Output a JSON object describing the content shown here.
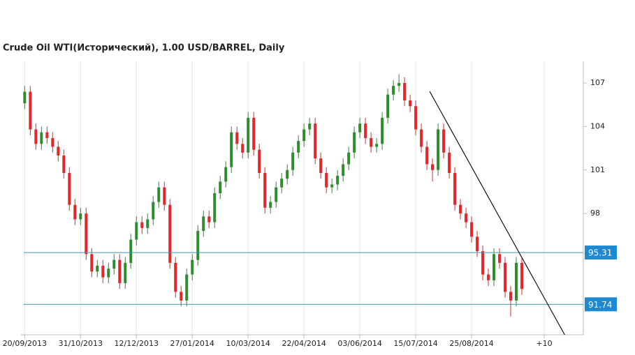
{
  "chart_data": {
    "type": "candlestick",
    "title": "Crude Oil WTI(Исторический), 1.00 USD/BARREL, Daily",
    "x": [
      0,
      3,
      6,
      9,
      12,
      15,
      18,
      21,
      24,
      27,
      30,
      33,
      36,
      39,
      42,
      45,
      48,
      51,
      54,
      57,
      60,
      63,
      66,
      69,
      72,
      75,
      78,
      81,
      84,
      87,
      90,
      93,
      96,
      99,
      102,
      105,
      108,
      111,
      114,
      117,
      120,
      123,
      126,
      129,
      132,
      135,
      138,
      141,
      144,
      147,
      150,
      153,
      156,
      159,
      162,
      165,
      168,
      171,
      174,
      177,
      180,
      183,
      186,
      189,
      192,
      195,
      198,
      201,
      204,
      207,
      210,
      213,
      216,
      219,
      222,
      225,
      228,
      231,
      234,
      237,
      240,
      243,
      246,
      249,
      252,
      255,
      258,
      261,
      264,
      267
    ],
    "open": [
      105.6,
      106.4,
      103.8,
      102.8,
      103.6,
      103.2,
      102.6,
      102.0,
      100.8,
      98.6,
      97.6,
      98.0,
      95.2,
      94.0,
      94.4,
      93.6,
      94.2,
      94.8,
      93.2,
      94.6,
      96.2,
      97.4,
      97.0,
      97.6,
      98.8,
      99.8,
      98.6,
      94.6,
      92.6,
      92.0,
      93.8,
      94.8,
      96.8,
      97.8,
      97.4,
      99.4,
      100.2,
      101.2,
      103.6,
      102.8,
      102.2,
      104.6,
      102.4,
      100.8,
      98.4,
      98.8,
      99.8,
      100.4,
      101.0,
      102.2,
      103.0,
      103.8,
      104.2,
      101.8,
      100.8,
      99.8,
      100.0,
      100.6,
      101.4,
      102.2,
      103.6,
      104.2,
      103.2,
      102.6,
      102.8,
      104.6,
      106.2,
      106.8,
      107.0,
      105.8,
      105.4,
      103.8,
      102.6,
      101.4,
      101.0,
      103.8,
      102.2,
      100.8,
      98.6,
      98.0,
      97.4,
      96.4,
      95.4,
      93.8,
      93.4,
      95.2,
      94.6,
      92.6,
      92.0,
      94.6
    ],
    "high": [
      106.8,
      106.8,
      104.2,
      104.0,
      104.0,
      103.6,
      103.0,
      102.4,
      101.2,
      99.0,
      98.4,
      98.4,
      95.6,
      94.8,
      94.8,
      94.6,
      95.2,
      95.2,
      95.0,
      96.6,
      97.8,
      97.8,
      98.0,
      99.2,
      100.2,
      100.2,
      99.0,
      95.0,
      93.0,
      94.2,
      95.2,
      97.2,
      98.2,
      98.2,
      99.8,
      100.6,
      101.6,
      104.0,
      104.0,
      103.2,
      105.0,
      105.0,
      102.8,
      101.2,
      99.2,
      100.2,
      100.8,
      101.4,
      102.6,
      103.4,
      104.2,
      104.6,
      104.6,
      102.2,
      101.2,
      100.4,
      101.0,
      101.8,
      102.6,
      104.0,
      104.6,
      104.6,
      103.6,
      103.2,
      105.0,
      106.6,
      107.2,
      107.6,
      107.4,
      106.2,
      105.8,
      104.2,
      103.0,
      101.8,
      104.2,
      104.2,
      102.6,
      101.2,
      99.0,
      98.4,
      97.8,
      96.8,
      95.8,
      94.2,
      95.6,
      95.6,
      95.0,
      93.0,
      95.0,
      95.0
    ],
    "low": [
      105.2,
      103.4,
      102.4,
      102.4,
      102.8,
      102.2,
      101.6,
      100.4,
      98.2,
      97.2,
      97.2,
      94.8,
      93.6,
      93.6,
      93.2,
      93.2,
      93.8,
      92.8,
      92.8,
      94.2,
      95.8,
      96.6,
      96.6,
      97.2,
      98.4,
      98.2,
      94.2,
      92.2,
      91.6,
      91.6,
      93.4,
      94.4,
      96.4,
      97.0,
      97.0,
      99.0,
      99.8,
      100.8,
      102.4,
      101.8,
      101.8,
      102.0,
      100.4,
      98.0,
      98.0,
      98.4,
      99.4,
      100.0,
      100.6,
      101.8,
      102.6,
      103.4,
      101.4,
      100.4,
      99.4,
      99.4,
      99.6,
      100.2,
      101.0,
      101.8,
      103.2,
      102.8,
      102.2,
      102.2,
      102.4,
      104.2,
      105.8,
      106.4,
      105.4,
      105.0,
      103.4,
      102.2,
      101.0,
      100.2,
      100.6,
      101.8,
      100.4,
      98.2,
      97.6,
      97.0,
      96.0,
      95.0,
      93.4,
      93.0,
      93.0,
      94.2,
      92.2,
      90.9,
      91.6,
      92.4
    ],
    "close": [
      106.4,
      103.8,
      102.8,
      103.6,
      103.2,
      102.6,
      102.0,
      100.8,
      98.6,
      97.6,
      98.0,
      95.2,
      94.0,
      94.4,
      93.6,
      94.2,
      94.8,
      93.2,
      94.6,
      96.2,
      97.4,
      97.0,
      97.6,
      98.8,
      99.8,
      98.6,
      94.6,
      92.6,
      92.0,
      93.8,
      94.8,
      96.8,
      97.8,
      97.4,
      99.4,
      100.2,
      101.2,
      103.6,
      102.8,
      102.2,
      104.6,
      102.4,
      100.8,
      98.4,
      98.8,
      99.8,
      100.4,
      101.0,
      102.2,
      103.0,
      103.8,
      104.2,
      101.8,
      100.8,
      99.8,
      100.0,
      100.6,
      101.4,
      102.2,
      103.6,
      104.2,
      103.2,
      102.6,
      102.8,
      104.6,
      106.2,
      106.8,
      107.0,
      105.8,
      105.4,
      103.8,
      102.6,
      101.4,
      101.0,
      103.8,
      102.2,
      100.8,
      98.6,
      98.0,
      97.4,
      96.4,
      95.4,
      93.8,
      93.4,
      95.2,
      94.6,
      92.6,
      92.0,
      94.6,
      92.8
    ],
    "up_color": "#2e8b2e",
    "down_color": "#e5262a",
    "level_color": "#3a9bb4",
    "level_label_color": "#1e88d0",
    "levels": [
      95.31,
      91.74
    ],
    "trendline": {
      "x": [
        217.5,
        290
      ],
      "y": [
        106.42,
        89.64
      ]
    },
    "xlim": [
      -2,
      300
    ],
    "ylim": [
      89.64,
      108.49
    ],
    "yticks": [
      98,
      101,
      104,
      107
    ],
    "xticks": [
      {
        "value": 0,
        "label": "20/09/2013"
      },
      {
        "value": 30,
        "label": "31/10/2013"
      },
      {
        "value": 60,
        "label": "12/12/2013"
      },
      {
        "value": 90,
        "label": "27/01/2014"
      },
      {
        "value": 120,
        "label": "10/03/2014"
      },
      {
        "value": 150,
        "label": "22/04/2014"
      },
      {
        "value": 180,
        "label": "03/06/2014"
      },
      {
        "value": 210,
        "label": "15/07/2014"
      },
      {
        "value": 240,
        "label": "25/08/2014"
      },
      {
        "value": 279,
        "label": "+10"
      }
    ],
    "grid": true
  }
}
